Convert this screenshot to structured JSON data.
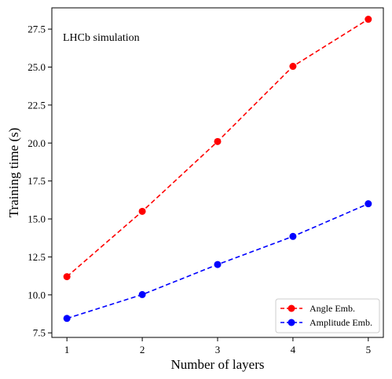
{
  "chart_data": {
    "type": "line",
    "annotation": "LHCb simulation",
    "xlabel": "Number of layers",
    "ylabel": "Training time (s)",
    "x": [
      1,
      2,
      3,
      4,
      5
    ],
    "xticks": [
      "1",
      "2",
      "3",
      "4",
      "5"
    ],
    "xlim": [
      0.8,
      5.2
    ],
    "ylim": [
      7.2,
      28.9
    ],
    "yticks": [
      7.5,
      10.0,
      12.5,
      15.0,
      17.5,
      20.0,
      22.5,
      25.0,
      27.5
    ],
    "ytick_labels": [
      "7.5",
      "10.0",
      "12.5",
      "15.0",
      "17.5",
      "20.0",
      "22.5",
      "25.0",
      "27.5"
    ],
    "grid": false,
    "legend_position": "lower-right",
    "series": [
      {
        "name": "Angle Emb.",
        "color": "#ff0000",
        "style": "dashed",
        "marker": "circle",
        "values": [
          11.2,
          15.5,
          20.1,
          25.05,
          28.15
        ]
      },
      {
        "name": "Amplitude Emb.",
        "color": "#0000ff",
        "style": "dashed",
        "marker": "circle",
        "values": [
          8.45,
          10.02,
          12.0,
          13.85,
          16.0
        ]
      }
    ]
  }
}
